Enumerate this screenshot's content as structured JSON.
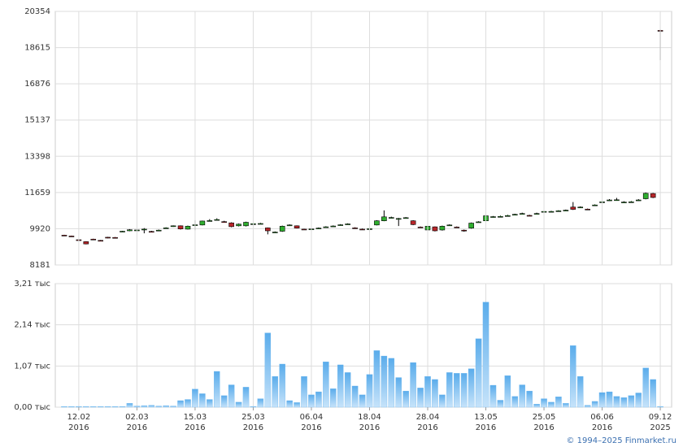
{
  "chart_data": [
    {
      "type": "candlestick",
      "ylim": [
        8181,
        20354
      ],
      "yticks": [
        8181,
        9920,
        11659,
        13398,
        15137,
        16876,
        18615,
        20354
      ],
      "grid": true,
      "up_color": "#2fae2f",
      "down_color": "#b8262a",
      "open": [
        9610,
        9570,
        9390,
        9300,
        9420,
        9360,
        9510,
        9500,
        9790,
        9820,
        9840,
        9880,
        9790,
        9840,
        9940,
        10040,
        10060,
        9900,
        10080,
        10100,
        10290,
        10340,
        10260,
        10200,
        10060,
        10060,
        10150,
        10160,
        9960,
        9750,
        9800,
        10090,
        10060,
        9900,
        9900,
        9940,
        10000,
        10040,
        10100,
        10140,
        9960,
        9900,
        9880,
        10100,
        10300,
        10450,
        10400,
        10440,
        10300,
        10000,
        9860,
        10010,
        9860,
        10090,
        10000,
        9850,
        9950,
        10240,
        10300,
        10490,
        10500,
        10540,
        10600,
        10640,
        10560,
        10640,
        10740,
        10740,
        10770,
        10800,
        10960,
        10950,
        10860,
        11040,
        11200,
        11290,
        11300,
        11190,
        11200,
        11290,
        11360,
        11610,
        19440
      ],
      "high": [
        9630,
        9590,
        9410,
        9320,
        9440,
        9380,
        9530,
        9520,
        9820,
        9900,
        9890,
        9950,
        9820,
        9880,
        9990,
        10080,
        10080,
        10070,
        10330,
        10310,
        10380,
        10420,
        10300,
        10230,
        10170,
        10260,
        10190,
        10200,
        9980,
        9790,
        10070,
        10130,
        10080,
        9920,
        9940,
        9980,
        10040,
        10080,
        10140,
        10180,
        9990,
        9930,
        9960,
        10330,
        10800,
        10500,
        10440,
        10480,
        10330,
        10030,
        10070,
        10030,
        10070,
        10130,
        10030,
        9880,
        10220,
        10280,
        10570,
        10530,
        10550,
        10590,
        10640,
        10690,
        10590,
        10690,
        10780,
        10780,
        10810,
        10840,
        11200,
        10990,
        10890,
        11090,
        11250,
        11340,
        11400,
        11240,
        11250,
        11340,
        11660,
        11640,
        19480
      ],
      "low": [
        9580,
        9540,
        9360,
        9170,
        9390,
        9330,
        9460,
        9470,
        9770,
        9800,
        9810,
        9700,
        9760,
        9820,
        9920,
        10010,
        9880,
        9880,
        9850,
        10080,
        10270,
        10320,
        10210,
        9990,
        10030,
        10030,
        10130,
        10140,
        9650,
        9720,
        9770,
        10070,
        9930,
        9860,
        9870,
        9920,
        9980,
        10020,
        10080,
        10120,
        9920,
        9860,
        9780,
        10080,
        10280,
        10430,
        10050,
        10420,
        10090,
        9960,
        9820,
        9790,
        9830,
        10070,
        9960,
        9780,
        9920,
        10220,
        10280,
        10460,
        10480,
        10510,
        10580,
        10610,
        10520,
        10610,
        10710,
        10720,
        10750,
        10770,
        10820,
        10920,
        10820,
        11010,
        11170,
        11260,
        11270,
        11160,
        11170,
        11260,
        11330,
        11390,
        18010
      ],
      "close": [
        9590,
        9560,
        9380,
        9190,
        9410,
        9350,
        9480,
        9490,
        9800,
        9870,
        9860,
        9900,
        9780,
        9850,
        9960,
        10060,
        9910,
        10040,
        10110,
        10290,
        10310,
        10360,
        10240,
        10020,
        10140,
        10230,
        10160,
        10170,
        9820,
        9760,
        10040,
        10100,
        9950,
        9890,
        9910,
        9950,
        10010,
        10050,
        10110,
        10150,
        9950,
        9890,
        9920,
        10300,
        10490,
        10460,
        10410,
        10450,
        10120,
        9990,
        10040,
        9820,
        10040,
        10100,
        9990,
        9840,
        10190,
        10250,
        10540,
        10500,
        10510,
        10550,
        10610,
        10650,
        10550,
        10650,
        10750,
        10750,
        10780,
        10810,
        10850,
        10960,
        10850,
        11060,
        11210,
        11300,
        11310,
        11200,
        11210,
        11300,
        11620,
        11420,
        19400
      ]
    },
    {
      "type": "bar",
      "color": "#6cb6ee",
      "categories": [
        null,
        null,
        "12.02",
        null,
        null,
        null,
        null,
        null,
        null,
        null,
        "02.03",
        null,
        null,
        null,
        null,
        null,
        null,
        null,
        "15.03",
        null,
        null,
        null,
        null,
        null,
        null,
        null,
        "25.03",
        null,
        null,
        null,
        null,
        null,
        null,
        null,
        "06.04",
        null,
        null,
        null,
        null,
        null,
        null,
        null,
        "18.04",
        null,
        null,
        null,
        null,
        null,
        null,
        null,
        "28.04",
        null,
        null,
        null,
        null,
        null,
        null,
        null,
        "13.05",
        null,
        null,
        null,
        null,
        null,
        null,
        null,
        "25.05",
        null,
        null,
        null,
        null,
        null,
        null,
        null,
        "06.06",
        null,
        null,
        null,
        null,
        null,
        null,
        null,
        "09.12"
      ],
      "category_years": [
        null,
        null,
        "2016",
        null,
        null,
        null,
        null,
        null,
        null,
        null,
        "2016",
        null,
        null,
        null,
        null,
        null,
        null,
        null,
        "2016",
        null,
        null,
        null,
        null,
        null,
        null,
        null,
        "2016",
        null,
        null,
        null,
        null,
        null,
        null,
        null,
        "2016",
        null,
        null,
        null,
        null,
        null,
        null,
        null,
        "2016",
        null,
        null,
        null,
        null,
        null,
        null,
        null,
        "2016",
        null,
        null,
        null,
        null,
        null,
        null,
        null,
        "2016",
        null,
        null,
        null,
        null,
        null,
        null,
        null,
        "2016",
        null,
        null,
        null,
        null,
        null,
        null,
        null,
        "2016",
        null,
        null,
        null,
        null,
        null,
        null,
        null,
        "2025"
      ],
      "values": [
        0.02,
        0.02,
        0.02,
        0.02,
        0.02,
        0.02,
        0.02,
        0.02,
        0.02,
        0.1,
        0.03,
        0.04,
        0.05,
        0.03,
        0.04,
        0.03,
        0.17,
        0.2,
        0.47,
        0.35,
        0.2,
        0.93,
        0.3,
        0.58,
        0.13,
        0.52,
        0.02,
        0.22,
        1.93,
        0.8,
        1.12,
        0.17,
        0.12,
        0.8,
        0.32,
        0.4,
        1.18,
        0.48,
        1.1,
        0.9,
        0.55,
        0.32,
        0.85,
        1.47,
        1.33,
        1.27,
        0.77,
        0.42,
        1.16,
        0.5,
        0.8,
        0.72,
        0.32,
        0.9,
        0.88,
        0.88,
        1.0,
        1.78,
        2.73,
        0.57,
        0.18,
        0.82,
        0.28,
        0.58,
        0.42,
        0.08,
        0.22,
        0.13,
        0.27,
        0.1,
        1.6,
        0.8,
        0.05,
        0.15,
        0.38,
        0.4,
        0.28,
        0.25,
        0.3,
        0.37,
        1.02,
        0.72,
        0.02
      ],
      "ylim": [
        0,
        3.21
      ],
      "yticks": [
        {
          "value": 0,
          "label": "0,00 тыс"
        },
        {
          "value": 1.07,
          "label": "1,07 тыс"
        },
        {
          "value": 2.14,
          "label": "2,14 тыс"
        },
        {
          "value": 3.21,
          "label": "3,21 тыс"
        }
      ],
      "grid": true
    }
  ],
  "footer": "© 1994–2025 Finmarket.ru"
}
